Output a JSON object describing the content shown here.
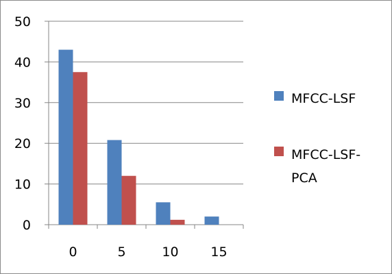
{
  "chart_data": {
    "type": "bar",
    "categories": [
      "0",
      "5",
      "10",
      "15"
    ],
    "series": [
      {
        "name": "MFCC-LSF",
        "values": [
          43,
          20.8,
          5.5,
          2
        ],
        "color": "#4f81bd"
      },
      {
        "name": "MFCC-LSF-PCA",
        "values": [
          37.5,
          12,
          1.2,
          0
        ],
        "color": "#c0504d"
      }
    ],
    "legend_lines": [
      [
        "MFCC-LSF"
      ],
      [
        "MFCC-LSF-",
        "PCA"
      ]
    ],
    "yticks": [
      "0",
      "10",
      "20",
      "30",
      "40",
      "50"
    ],
    "ylim": [
      0,
      50
    ],
    "grid": true,
    "legend_position": "right",
    "title": "",
    "xlabel": "",
    "ylabel": ""
  }
}
